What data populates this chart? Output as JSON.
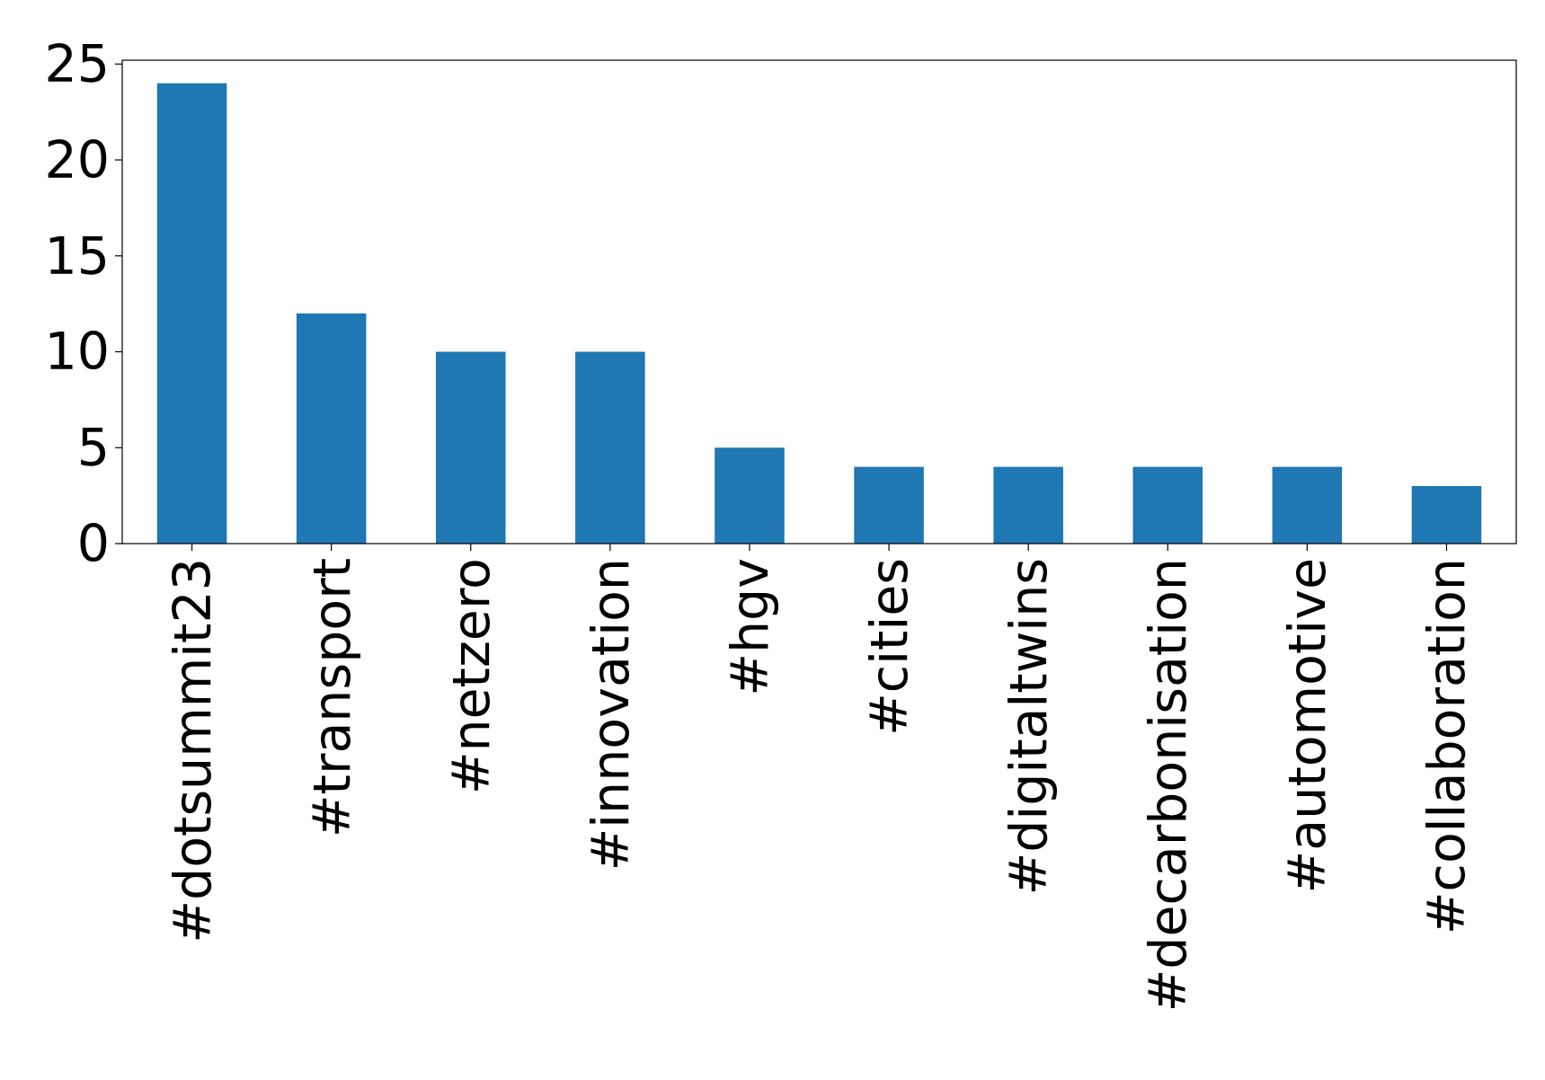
{
  "chart_data": {
    "type": "bar",
    "categories": [
      "#dotsummit23",
      "#transport",
      "#netzero",
      "#innovation",
      "#hgv",
      "#cities",
      "#digitaltwins",
      "#decarbonisation",
      "#automotive",
      "#collaboration"
    ],
    "values": [
      24,
      12,
      10,
      10,
      5,
      4,
      4,
      4,
      4,
      3
    ],
    "color": "#1f77b4",
    "ylim": [
      0,
      25.2
    ],
    "yticks": [
      0,
      5,
      10,
      15,
      20,
      25
    ]
  }
}
